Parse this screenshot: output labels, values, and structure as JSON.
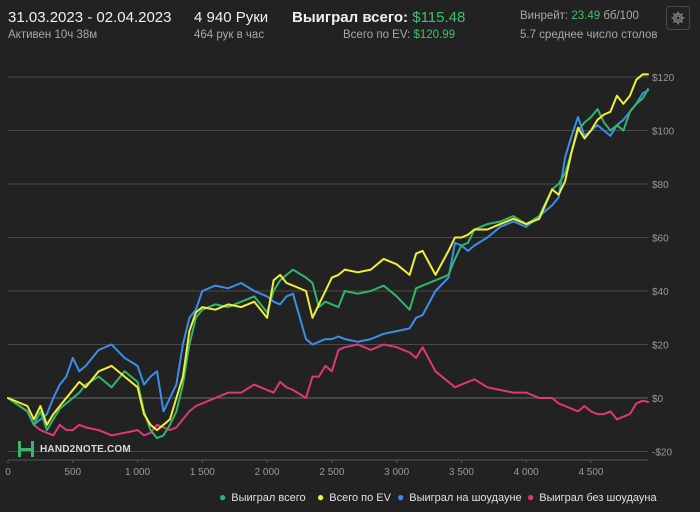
{
  "header": {
    "date_range": "31.03.2023 - 02.04.2023",
    "active_time": "Активен 10ч 38м",
    "hands": "4 940 Руки",
    "hands_per_hour": "464 рук в час",
    "won_label": "Выиграл всего:",
    "won_value": "$115.48",
    "ev_label": "Всего по EV:",
    "ev_value": "$120.99",
    "winrate_label": "Винрейт:",
    "winrate_value": "23.49",
    "winrate_unit": "бб/100",
    "tables": "5.7 среднее число столов"
  },
  "logo": {
    "text": "HAND2NOTE.COM"
  },
  "icons": {
    "settings": "gear-icon"
  },
  "colors": {
    "won": "#2fb86a",
    "ev": "#f2ee3a",
    "showdown": "#3a8fe8",
    "non_showdown": "#e0367a",
    "grid": "#4a4a4a",
    "axis_text": "#999999",
    "background": "#222222"
  },
  "chart_data": {
    "type": "line",
    "xlim": [
      0,
      4940
    ],
    "ylim": [
      -20,
      120
    ],
    "x_ticks": [
      {
        "value": 0,
        "label": "0"
      },
      {
        "value": 500,
        "label": "500"
      },
      {
        "value": 1000,
        "label": "1 000"
      },
      {
        "value": 1500,
        "label": "1 500"
      },
      {
        "value": 2000,
        "label": "2 000"
      },
      {
        "value": 2500,
        "label": "2 500"
      },
      {
        "value": 3000,
        "label": "3 000"
      },
      {
        "value": 3500,
        "label": "3 500"
      },
      {
        "value": 4000,
        "label": "4 000"
      },
      {
        "value": 4500,
        "label": "4 500"
      }
    ],
    "y_ticks": [
      {
        "value": 120,
        "label": "$120"
      },
      {
        "value": 100,
        "label": "$100"
      },
      {
        "value": 80,
        "label": "$80"
      },
      {
        "value": 60,
        "label": "$60"
      },
      {
        "value": 40,
        "label": "$40"
      },
      {
        "value": 20,
        "label": "$20"
      },
      {
        "value": 0,
        "label": "$0"
      },
      {
        "value": -20,
        "label": "-$20"
      }
    ],
    "grid": true,
    "legend_position": "bottom-right",
    "series": [
      {
        "name": "Выиграл всего",
        "key": "won",
        "x": [
          0,
          150,
          200,
          250,
          300,
          350,
          400,
          450,
          500,
          550,
          600,
          700,
          800,
          900,
          1000,
          1050,
          1100,
          1150,
          1200,
          1250,
          1300,
          1350,
          1400,
          1450,
          1500,
          1600,
          1700,
          1800,
          1900,
          2000,
          2050,
          2100,
          2150,
          2200,
          2300,
          2350,
          2400,
          2450,
          2500,
          2550,
          2600,
          2700,
          2800,
          2900,
          3000,
          3100,
          3150,
          3200,
          3300,
          3400,
          3450,
          3500,
          3550,
          3600,
          3700,
          3800,
          3900,
          4000,
          4100,
          4200,
          4250,
          4300,
          4350,
          4400,
          4450,
          4500,
          4550,
          4600,
          4650,
          4700,
          4750,
          4800,
          4850,
          4900,
          4940
        ],
        "y": [
          0,
          -5,
          -10,
          -5,
          -12,
          -8,
          -4,
          -2,
          0,
          2,
          5,
          8,
          4,
          10,
          6,
          -5,
          -12,
          -15,
          -14,
          -10,
          -5,
          5,
          20,
          30,
          33,
          35,
          34,
          36,
          38,
          32,
          40,
          44,
          46,
          48,
          45,
          43,
          34,
          36,
          35,
          34,
          40,
          39,
          40,
          42,
          38,
          33,
          41,
          42,
          44,
          46,
          52,
          57,
          58,
          63,
          65,
          66,
          68,
          65,
          68,
          78,
          80,
          84,
          92,
          100,
          103,
          105,
          108,
          103,
          100,
          102,
          100,
          107,
          110,
          112,
          115.48
        ]
      },
      {
        "name": "Всего по EV",
        "key": "ev",
        "x": [
          0,
          150,
          200,
          250,
          300,
          350,
          400,
          450,
          500,
          550,
          600,
          700,
          800,
          900,
          1000,
          1050,
          1100,
          1150,
          1200,
          1250,
          1300,
          1350,
          1400,
          1450,
          1500,
          1600,
          1700,
          1800,
          1900,
          2000,
          2050,
          2100,
          2150,
          2200,
          2300,
          2350,
          2400,
          2450,
          2500,
          2550,
          2600,
          2700,
          2800,
          2900,
          3000,
          3100,
          3150,
          3200,
          3300,
          3400,
          3450,
          3500,
          3550,
          3600,
          3700,
          3800,
          3900,
          4000,
          4100,
          4200,
          4250,
          4300,
          4350,
          4400,
          4450,
          4500,
          4550,
          4600,
          4650,
          4700,
          4750,
          4800,
          4850,
          4900,
          4940
        ],
        "y": [
          0,
          -3,
          -8,
          -3,
          -10,
          -6,
          -3,
          0,
          3,
          6,
          4,
          10,
          12,
          8,
          4,
          -6,
          -10,
          -12,
          -10,
          -8,
          0,
          8,
          25,
          32,
          34,
          33,
          35,
          34,
          36,
          30,
          44,
          46,
          43,
          42,
          40,
          30,
          35,
          40,
          45,
          46,
          48,
          47,
          48,
          52,
          50,
          46,
          54,
          55,
          46,
          55,
          60,
          60,
          61,
          63,
          63,
          65,
          67,
          65,
          67,
          78,
          76,
          81,
          92,
          101,
          97,
          100,
          104,
          106,
          107,
          113,
          110,
          113,
          119,
          121,
          120.99
        ]
      },
      {
        "name": "Выиграл на шоудауне",
        "key": "showdown",
        "x": [
          0,
          150,
          200,
          250,
          300,
          350,
          400,
          450,
          500,
          550,
          600,
          700,
          800,
          900,
          1000,
          1050,
          1100,
          1150,
          1200,
          1250,
          1300,
          1350,
          1400,
          1450,
          1500,
          1600,
          1700,
          1800,
          1900,
          2000,
          2050,
          2100,
          2150,
          2200,
          2300,
          2350,
          2400,
          2450,
          2500,
          2550,
          2600,
          2700,
          2800,
          2900,
          3000,
          3100,
          3150,
          3200,
          3300,
          3400,
          3450,
          3500,
          3550,
          3600,
          3700,
          3800,
          3900,
          4000,
          4100,
          4200,
          4250,
          4300,
          4350,
          4400,
          4450,
          4500,
          4550,
          4600,
          4650,
          4700,
          4750,
          4800,
          4850,
          4900,
          4940
        ],
        "y": [
          0,
          -5,
          -10,
          -8,
          -6,
          0,
          5,
          8,
          15,
          10,
          12,
          18,
          20,
          15,
          12,
          5,
          8,
          10,
          -5,
          0,
          5,
          20,
          30,
          33,
          40,
          42,
          41,
          43,
          40,
          38,
          36,
          35,
          38,
          39,
          22,
          20,
          21,
          22,
          22,
          23,
          22,
          21,
          22,
          24,
          25,
          26,
          30,
          31,
          40,
          45,
          58,
          57,
          55,
          57,
          60,
          64,
          66,
          64,
          68,
          72,
          75,
          90,
          98,
          105,
          98,
          100,
          102,
          100,
          98,
          102,
          104,
          107,
          110,
          114,
          115
        ]
      },
      {
        "name": "Выиграл без шоудауна",
        "key": "non_showdown",
        "x": [
          0,
          150,
          200,
          250,
          300,
          350,
          400,
          450,
          500,
          550,
          600,
          700,
          800,
          900,
          1000,
          1050,
          1100,
          1150,
          1200,
          1250,
          1300,
          1350,
          1400,
          1450,
          1500,
          1600,
          1700,
          1800,
          1900,
          2000,
          2050,
          2100,
          2150,
          2200,
          2300,
          2350,
          2400,
          2450,
          2500,
          2550,
          2600,
          2700,
          2800,
          2900,
          3000,
          3100,
          3150,
          3200,
          3300,
          3400,
          3450,
          3500,
          3550,
          3600,
          3700,
          3800,
          3900,
          4000,
          4100,
          4200,
          4250,
          4300,
          4350,
          4400,
          4450,
          4500,
          4550,
          4600,
          4650,
          4700,
          4750,
          4800,
          4850,
          4900,
          4940
        ],
        "y": [
          0,
          -5,
          -10,
          -12,
          -13,
          -14,
          -10,
          -12,
          -12,
          -10,
          -11,
          -12,
          -14,
          -13,
          -12,
          -14,
          -13,
          -10,
          -11,
          -12,
          -11,
          -8,
          -5,
          -3,
          -2,
          0,
          2,
          2,
          5,
          3,
          2,
          6,
          4,
          3,
          0,
          8,
          8,
          12,
          10,
          18,
          19,
          20,
          18,
          20,
          19,
          17,
          15,
          19,
          10,
          6,
          4,
          5,
          6,
          7,
          4,
          3,
          2,
          2,
          0,
          0,
          -2,
          -3,
          -4,
          -5,
          -3,
          -5,
          -6,
          -6,
          -5,
          -8,
          -7,
          -6,
          -2,
          -1,
          -1.5
        ]
      }
    ]
  },
  "legend": [
    {
      "label": "Выиграл всего",
      "color": "#2fb86a"
    },
    {
      "label": "Всего по EV",
      "color": "#f2ee3a"
    },
    {
      "label": "Выиграл на шоудауне",
      "color": "#3a8fe8"
    },
    {
      "label": "Выиграл без шоудауна",
      "color": "#e0367a"
    }
  ]
}
